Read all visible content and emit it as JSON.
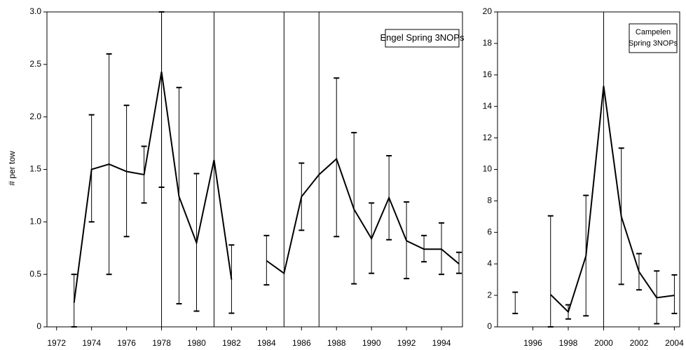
{
  "chart_data": [
    {
      "type": "line",
      "y_label": "# per tow",
      "annotation": [
        "Engel Spring 3NOPs"
      ],
      "color": "#000000",
      "x": [
        1973,
        1974,
        1975,
        1976,
        1977,
        1978,
        1979,
        1980,
        1981,
        1982,
        1983,
        1984,
        1985,
        1986,
        1987,
        1988,
        1989,
        1990,
        1991,
        1992,
        1993,
        1994,
        1995
      ],
      "values": [
        0.23,
        1.5,
        1.55,
        1.48,
        1.45,
        2.43,
        1.24,
        0.8,
        1.59,
        0.45,
        null,
        0.63,
        0.51,
        1.24,
        1.45,
        1.6,
        1.12,
        0.84,
        1.23,
        0.82,
        0.74,
        0.74,
        0.6
      ],
      "ci_low": [
        0,
        1.0,
        0.5,
        0.86,
        1.18,
        1.33,
        0.22,
        0.15,
        null,
        0.13,
        null,
        0.4,
        null,
        0.92,
        null,
        0.86,
        0.41,
        0.51,
        0.83,
        0.46,
        0.62,
        0.5,
        0.51
      ],
      "ci_high": [
        0.5,
        2.02,
        2.6,
        2.11,
        1.72,
        3.0,
        2.28,
        1.46,
        null,
        0.78,
        null,
        0.87,
        null,
        1.56,
        null,
        2.37,
        1.85,
        1.18,
        1.63,
        1.19,
        0.87,
        0.99,
        0.71
      ],
      "vlines": [
        1978,
        1981,
        1985,
        1987
      ],
      "xlim": [
        1971.45,
        1995.2
      ],
      "xticks": [
        1972,
        1974,
        1976,
        1978,
        1980,
        1982,
        1984,
        1986,
        1988,
        1990,
        1992,
        1994
      ],
      "ylim": [
        0,
        3.0
      ],
      "yticks": [
        0,
        0.5,
        {
          "value": 1.0,
          "label": "1.0"
        },
        1.5,
        {
          "value": 2.0,
          "label": "2.0"
        },
        2.5,
        {
          "value": 3.0,
          "label": "3.0"
        }
      ]
    },
    {
      "type": "line",
      "annotation": [
        "Campelen",
        "Spring 3NOPs"
      ],
      "color": "#000000",
      "x": [
        1995,
        1996,
        1997,
        1998,
        1999,
        2000,
        2001,
        2002,
        2003,
        2004
      ],
      "values": [
        1.5,
        null,
        2.05,
        0.95,
        4.5,
        15.3,
        7.0,
        3.5,
        1.85,
        2.0
      ],
      "ci_low": [
        0.85,
        null,
        0,
        0.5,
        0.7,
        null,
        2.7,
        2.35,
        0.2,
        0.85
      ],
      "ci_high": [
        2.2,
        null,
        7.05,
        1.4,
        8.35,
        null,
        11.35,
        4.65,
        3.55,
        3.3
      ],
      "vlines": [
        2000
      ],
      "xlim": [
        1994.0,
        2004.3
      ],
      "xticks": [
        1996,
        1998,
        2000,
        2002,
        2004
      ],
      "ylim": [
        0,
        20
      ],
      "yticks": [
        0,
        2,
        4,
        6,
        8,
        10,
        12,
        14,
        16,
        18,
        20
      ]
    }
  ]
}
